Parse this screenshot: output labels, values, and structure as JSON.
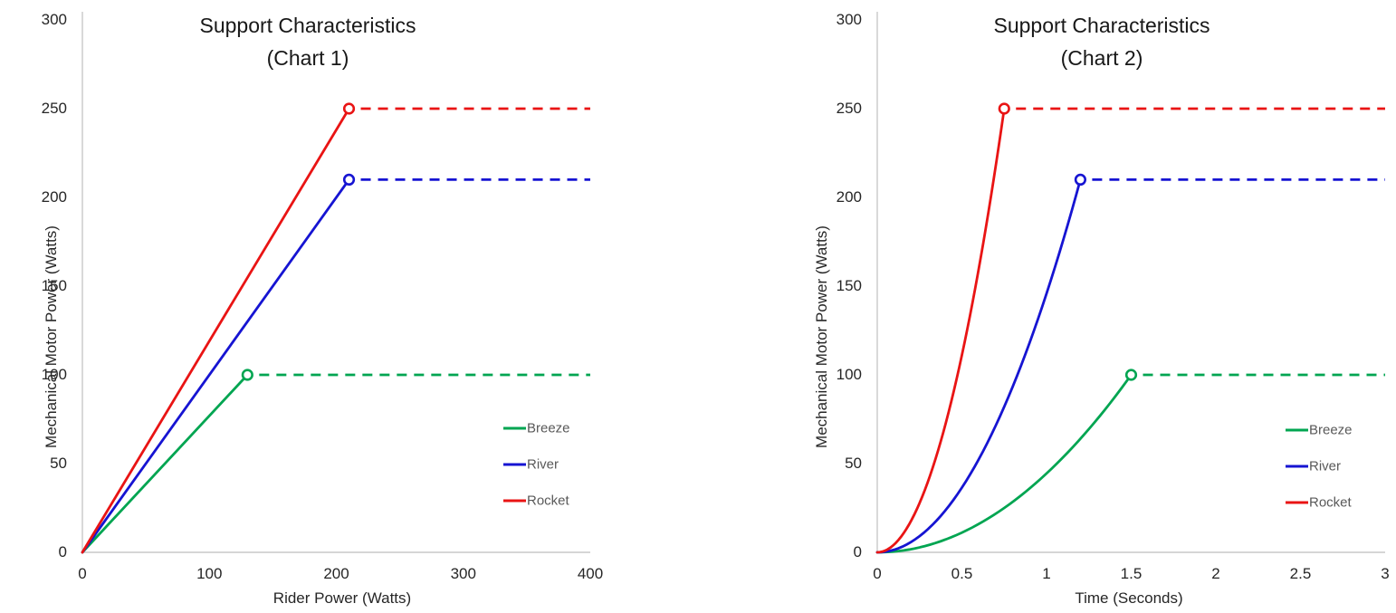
{
  "page": {
    "background": "#ffffff"
  },
  "chart_data": [
    {
      "type": "line",
      "title": "Support Characteristics",
      "subtitle": "(Chart 1)",
      "xlabel": "Rider Power (Watts)",
      "ylabel": "Mechanical Motor Power (Watts)",
      "xlim": [
        0,
        400
      ],
      "ylim": [
        0,
        300
      ],
      "x_ticks": [
        0,
        100,
        200,
        300,
        400
      ],
      "y_ticks": [
        0,
        50,
        100,
        150,
        200,
        250,
        300
      ],
      "grid": false,
      "legend_position": "inside-right-lower",
      "curve": "linear",
      "marker": "open-circle-at-ramp-end",
      "series": [
        {
          "name": "Breeze",
          "color": "#00a551",
          "ramp_x_end": 130,
          "max_y": 100,
          "plateau_x_end": 400,
          "solid_segment": [
            [
              0,
              0
            ],
            [
              130,
              100
            ]
          ],
          "dashed_segment": [
            [
              130,
              100
            ],
            [
              400,
              100
            ]
          ]
        },
        {
          "name": "River",
          "color": "#1614d2",
          "ramp_x_end": 210,
          "max_y": 210,
          "plateau_x_end": 400,
          "solid_segment": [
            [
              0,
              0
            ],
            [
              210,
              210
            ]
          ],
          "dashed_segment": [
            [
              210,
              210
            ],
            [
              400,
              210
            ]
          ]
        },
        {
          "name": "Rocket",
          "color": "#e91414",
          "ramp_x_end": 210,
          "max_y": 250,
          "plateau_x_end": 400,
          "solid_segment": [
            [
              0,
              0
            ],
            [
              210,
              250
            ]
          ],
          "dashed_segment": [
            [
              210,
              250
            ],
            [
              400,
              250
            ]
          ]
        }
      ]
    },
    {
      "type": "line",
      "title": "Support Characteristics",
      "subtitle": "(Chart 2)",
      "xlabel": "Time (Seconds)",
      "ylabel": "Mechanical Motor Power (Watts)",
      "xlim": [
        0,
        3
      ],
      "ylim": [
        0,
        300
      ],
      "x_ticks": [
        0,
        0.5,
        1,
        1.5,
        2,
        2.5,
        3
      ],
      "y_ticks": [
        0,
        50,
        100,
        150,
        200,
        250,
        300
      ],
      "grid": false,
      "legend_position": "inside-right-lower",
      "curve": "quadratic",
      "marker": "open-circle-at-ramp-end",
      "series": [
        {
          "name": "Breeze",
          "color": "#00a551",
          "ramp_x_end": 1.5,
          "max_y": 100,
          "plateau_x_end": 3,
          "solid_segment": [
            [
              0,
              0
            ],
            [
              1.5,
              100
            ]
          ],
          "dashed_segment": [
            [
              1.5,
              100
            ],
            [
              3,
              100
            ]
          ]
        },
        {
          "name": "River",
          "color": "#1614d2",
          "ramp_x_end": 1.2,
          "max_y": 210,
          "plateau_x_end": 3,
          "solid_segment": [
            [
              0,
              0
            ],
            [
              1.2,
              210
            ]
          ],
          "dashed_segment": [
            [
              1.2,
              210
            ],
            [
              3,
              210
            ]
          ]
        },
        {
          "name": "Rocket",
          "color": "#e91414",
          "ramp_x_end": 0.75,
          "max_y": 250,
          "plateau_x_end": 3,
          "solid_segment": [
            [
              0,
              0
            ],
            [
              0.75,
              250
            ]
          ],
          "dashed_segment": [
            [
              0.75,
              250
            ],
            [
              3,
              250
            ]
          ]
        }
      ]
    }
  ]
}
